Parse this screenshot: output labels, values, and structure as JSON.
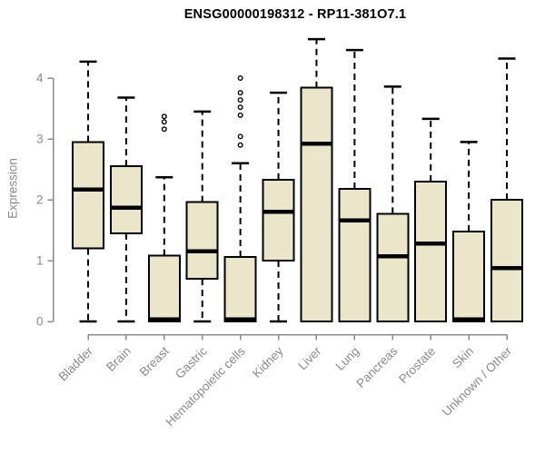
{
  "figure": {
    "title": "ENSG00000198312 - RP11-381O7.1"
  },
  "chart_data": {
    "type": "box",
    "title": "ENSG00000198312 - RP11-381O7.1",
    "xlabel": "",
    "ylabel": "Expression",
    "ylim": [
      0,
      4
    ],
    "y_ticks": [
      "0",
      "1",
      "2",
      "3",
      "4"
    ],
    "grid": false,
    "legend": "none",
    "categories": [
      "Bladder",
      "Brain",
      "Breast",
      "Gastric",
      "Hematopoietic cells",
      "Kidney",
      "Liver",
      "Lung",
      "Pancreas",
      "Prostate",
      "Skin",
      "Unknown / Other"
    ],
    "boxes": [
      {
        "category": "Bladder",
        "whisker_low": 0,
        "q1": 1.2,
        "median": 2.17,
        "q3": 2.95,
        "whisker_high": 4.27,
        "outliers": []
      },
      {
        "category": "Brain",
        "whisker_low": 0,
        "q1": 1.45,
        "median": 1.87,
        "q3": 2.55,
        "whisker_high": 3.68,
        "outliers": []
      },
      {
        "category": "Breast",
        "whisker_low": 0,
        "q1": 0,
        "median": 0.03,
        "q3": 1.08,
        "whisker_high": 2.37,
        "outliers": [
          3.37,
          3.28,
          3.16
        ]
      },
      {
        "category": "Gastric",
        "whisker_low": 0,
        "q1": 0.7,
        "median": 1.15,
        "q3": 1.96,
        "whisker_high": 3.45,
        "outliers": []
      },
      {
        "category": "Hematopoietic cells",
        "whisker_low": 0,
        "q1": 0,
        "median": 0.03,
        "q3": 1.06,
        "whisker_high": 2.6,
        "outliers": [
          4.0,
          3.76,
          3.64,
          3.52,
          3.39,
          3.04,
          2.9
        ]
      },
      {
        "category": "Kidney",
        "whisker_low": 0,
        "q1": 1.0,
        "median": 1.8,
        "q3": 2.33,
        "whisker_high": 3.76,
        "outliers": []
      },
      {
        "category": "Liver",
        "whisker_low": 0,
        "q1": 0,
        "median": 2.92,
        "q3": 3.84,
        "whisker_high": 4.64,
        "outliers": []
      },
      {
        "category": "Lung",
        "whisker_low": 0,
        "q1": 0,
        "median": 1.66,
        "q3": 2.18,
        "whisker_high": 4.46,
        "outliers": []
      },
      {
        "category": "Pancreas",
        "whisker_low": 0,
        "q1": 0,
        "median": 1.07,
        "q3": 1.77,
        "whisker_high": 3.86,
        "outliers": []
      },
      {
        "category": "Prostate",
        "whisker_low": 0,
        "q1": 0,
        "median": 1.28,
        "q3": 2.3,
        "whisker_high": 3.33,
        "outliers": []
      },
      {
        "category": "Skin",
        "whisker_low": 0,
        "q1": 0,
        "median": 0.03,
        "q3": 1.48,
        "whisker_high": 2.95,
        "outliers": []
      },
      {
        "category": "Unknown / Other",
        "whisker_low": 0,
        "q1": 0,
        "median": 0.88,
        "q3": 2.0,
        "whisker_high": 4.32,
        "outliers": []
      }
    ],
    "colors": {
      "box_fill": "#ebe5ca",
      "box_border": "#000000",
      "median": "#000000",
      "whisker": "#000000",
      "axis_line": "#8a8a8a",
      "axis_text": "#8a8a8a",
      "title_text": "#000000",
      "background": "#ffffff"
    }
  }
}
